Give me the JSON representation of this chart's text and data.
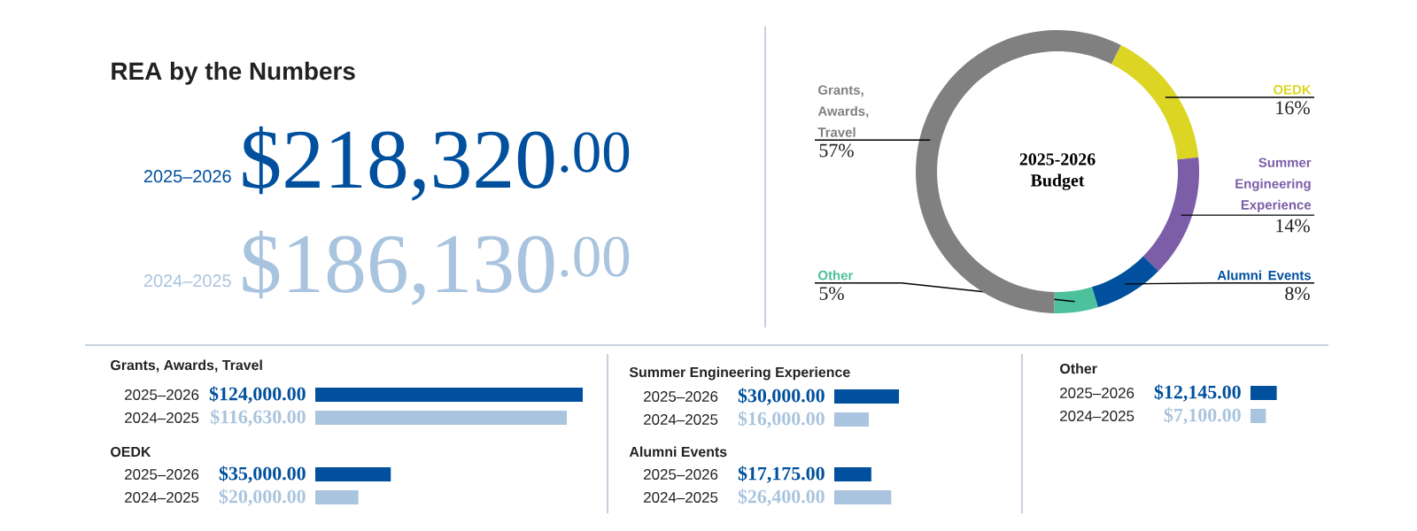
{
  "chart_data": [
    {
      "type": "other",
      "title": "REA by the Numbers",
      "annotations": [
        "2025–2026",
        "$218,320$^{.00}$",
        "2024–2025",
        "$186,130$^{.00}$"
      ]
    },
    {
      "type": "donut",
      "title": "2025-2026 Budget",
      "categories": [
        "OEDK",
        "Summer Engineering Experience",
        "Alumni Events",
        "Other",
        "Grants, Awards, Travel"
      ],
      "values": [
        16,
        14,
        8,
        5,
        57
      ],
      "value_labels": [
        "16%",
        "14%",
        "8%",
        "5%",
        "57%"
      ],
      "colors": [
        "#ddd523",
        "#7b5ea7",
        "#00509e",
        "#4cc19c",
        "#808080"
      ]
    },
    {
      "type": "bar",
      "orientation": "horizontal",
      "title": "Grants, Awards, Travel",
      "categories": [
        "2025–2026",
        "2024–2025"
      ],
      "values": [
        124000,
        116630
      ],
      "value_labels": [
        "$124,000.00",
        "$116,630.00"
      ],
      "colors": [
        "#00509e",
        "#a9c4de"
      ],
      "tick_labels": "y"
    },
    {
      "type": "bar",
      "orientation": "horizontal",
      "title": "OEDK",
      "categories": [
        "2025–2026",
        "2024–2025"
      ],
      "values": [
        35000,
        20000
      ],
      "value_labels": [
        "$35,000.00",
        "$20,000.00"
      ],
      "colors": [
        "#00509e",
        "#a9c4de"
      ],
      "tick_labels": "y"
    },
    {
      "type": "bar",
      "orientation": "horizontal",
      "title": "Summer Engineering Experience",
      "categories": [
        "2025–2026",
        "2024–2025"
      ],
      "values": [
        30000,
        16000
      ],
      "value_labels": [
        "$30,000.00",
        "$16,000.00"
      ],
      "colors": [
        "#00509e",
        "#a9c4de"
      ],
      "tick_labels": "y"
    },
    {
      "type": "bar",
      "orientation": "horizontal",
      "title": "Alumni Events",
      "categories": [
        "2025–2026",
        "2024–2025"
      ],
      "values": [
        17175,
        26400
      ],
      "value_labels": [
        "$17,175.00",
        "$26,400.00"
      ],
      "colors": [
        "#00509e",
        "#a9c4de"
      ],
      "tick_labels": "y"
    },
    {
      "type": "bar",
      "orientation": "horizontal",
      "title": "Other",
      "categories": [
        "2025–2026",
        "2024–2025"
      ],
      "values": [
        12145,
        7100
      ],
      "value_labels": [
        "$12,145.00",
        "$7,100.00"
      ],
      "colors": [
        "#00509e",
        "#a9c4de"
      ],
      "tick_labels": "y"
    }
  ]
}
